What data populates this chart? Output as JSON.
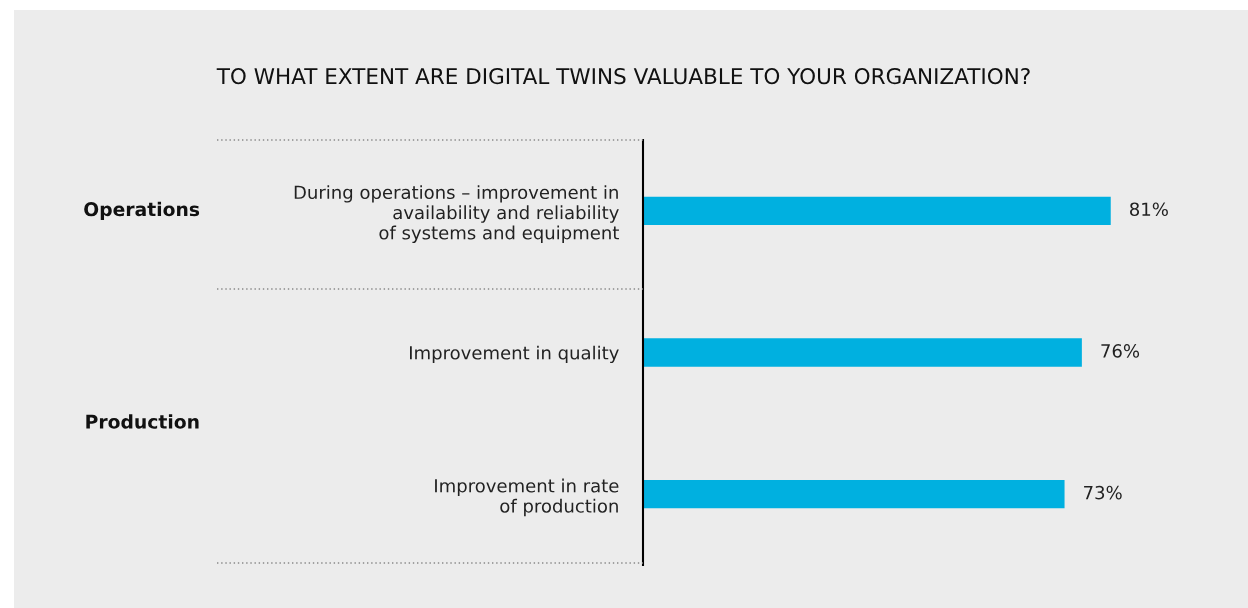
{
  "chart_data": {
    "type": "bar",
    "orientation": "horizontal",
    "title": "TO WHAT EXTENT ARE DIGITAL TWINS VALUABLE TO YOUR ORGANIZATION?",
    "categories": [
      "During operations – improvement in\navailability and reliability\nof systems and equipment",
      "Improvement in quality",
      "Improvement in rate\nof production"
    ],
    "values": [
      81,
      76,
      73
    ],
    "color": "#00b0e0",
    "data_labels": true,
    "value_labels": [
      "81%",
      "76%",
      "73%"
    ],
    "annotations": [
      "Operations",
      "Production"
    ],
    "grid": false,
    "legend": false,
    "tick_labels": "y"
  }
}
